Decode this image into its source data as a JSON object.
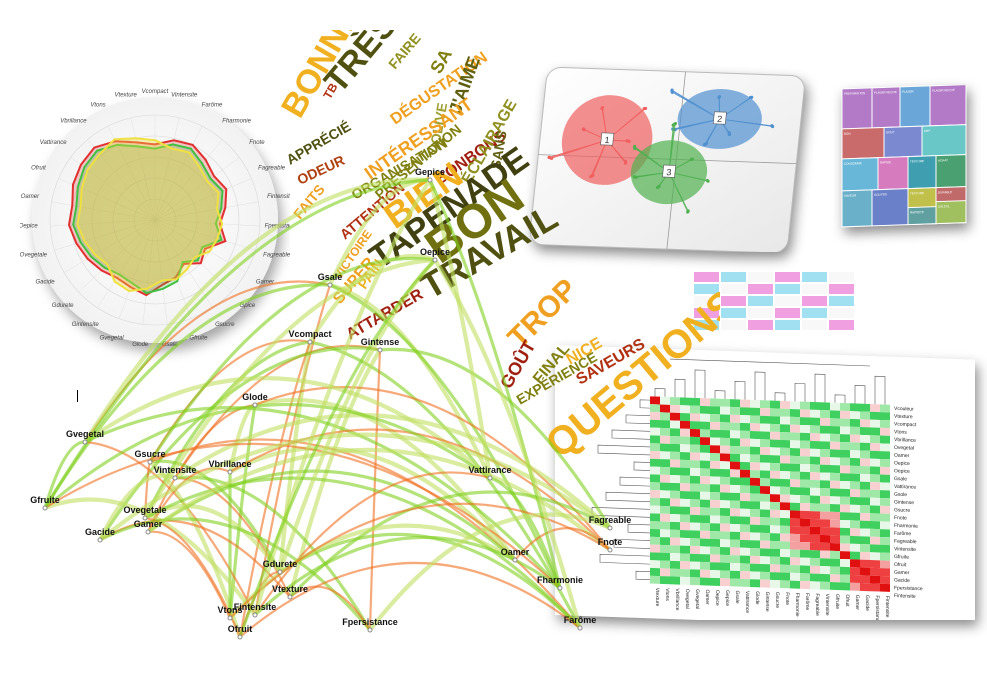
{
  "radar": {
    "labels": [
      "Vcompact",
      "Vintensite",
      "Farôme",
      "Fharmonie",
      "Fnote",
      "Fagreable",
      "Fintensite",
      "Fpersistance",
      "Fagreable",
      "Gamer",
      "Gpice",
      "Gsucre",
      "Gfruite",
      "Gsale",
      "Glode",
      "Gvegetal",
      "Gintensite",
      "Gdurete",
      "Gacide",
      "Ovegetale",
      "Oepice",
      "Oamer",
      "Ofruit",
      "Vattirance",
      "Vbrillance",
      "Vtons",
      "Vtexture"
    ],
    "series": [
      {
        "color": "#e03030",
        "values": [
          0.72,
          0.78,
          0.8,
          0.75,
          0.7,
          0.74,
          0.68,
          0.62,
          0.7,
          0.55,
          0.6,
          0.5,
          0.58,
          0.62,
          0.72,
          0.68,
          0.66,
          0.7,
          0.74,
          0.78,
          0.82,
          0.8,
          0.85,
          0.88,
          0.9,
          0.84,
          0.76
        ]
      },
      {
        "color": "#40c040",
        "values": [
          0.68,
          0.74,
          0.76,
          0.7,
          0.66,
          0.7,
          0.64,
          0.58,
          0.66,
          0.52,
          0.56,
          0.48,
          0.62,
          0.66,
          0.7,
          0.64,
          0.62,
          0.66,
          0.7,
          0.74,
          0.78,
          0.76,
          0.8,
          0.84,
          0.86,
          0.8,
          0.72
        ]
      },
      {
        "color": "#f0e040",
        "values": [
          0.76,
          0.7,
          0.72,
          0.66,
          0.62,
          0.66,
          0.6,
          0.64,
          0.62,
          0.6,
          0.52,
          0.56,
          0.6,
          0.58,
          0.66,
          0.72,
          0.7,
          0.62,
          0.66,
          0.7,
          0.74,
          0.72,
          0.76,
          0.8,
          0.82,
          0.86,
          0.8
        ]
      }
    ]
  },
  "wordcloud": {
    "words": [
      {
        "text": "BONNE",
        "color": "#f0b020"
      },
      {
        "text": "TRÈS",
        "color": "#505010"
      },
      {
        "text": "FAIRE",
        "color": "#909020"
      },
      {
        "text": "SA",
        "color": "#808010"
      },
      {
        "text": "TB",
        "color": "#b03010"
      },
      {
        "text": "DÉGUSTATION",
        "color": "#f0a020"
      },
      {
        "text": "OLIVE",
        "color": "#a0a030"
      },
      {
        "text": "J'AIME",
        "color": "#606010"
      },
      {
        "text": "APPRÉCIÉ",
        "color": "#505010"
      },
      {
        "text": "ODEUR",
        "color": "#b04010"
      },
      {
        "text": "ORGANISATION",
        "color": "#808010"
      },
      {
        "text": "INTÉRESSANT",
        "color": "#f0a020"
      },
      {
        "text": "BONBONS",
        "color": "#a02010"
      },
      {
        "text": "ÉCLAIRAGE",
        "color": "#909020"
      },
      {
        "text": "SANS",
        "color": "#606010"
      },
      {
        "text": "ATTENTION",
        "color": "#b03010"
      },
      {
        "text": "BIEN",
        "color": "#f0b020"
      },
      {
        "text": "TAPENADE",
        "color": "#404010"
      },
      {
        "text": "BON",
        "color": "#707010"
      },
      {
        "text": "TRAVAIL",
        "color": "#505010"
      },
      {
        "text": "VICTOIRE",
        "color": "#f0a020"
      },
      {
        "text": "PAIN",
        "color": "#f0b020"
      },
      {
        "text": "SUPER",
        "color": "#f0a020"
      },
      {
        "text": "ATTARDER",
        "color": "#a02010"
      },
      {
        "text": "TROP",
        "color": "#f0a020"
      },
      {
        "text": "FINAL",
        "color": "#808010"
      },
      {
        "text": "GOÛT",
        "color": "#a02010"
      },
      {
        "text": "NICE",
        "color": "#f0b020"
      },
      {
        "text": "SAVEURS",
        "color": "#b03010"
      },
      {
        "text": "EXPÉRIENCE",
        "color": "#808010"
      },
      {
        "text": "QUESTIONS",
        "color": "#f0b020"
      },
      {
        "text": "FAITS",
        "color": "#f0a020"
      },
      {
        "text": "PRÉSENTATION",
        "color": "#808010"
      }
    ]
  },
  "scatter": {
    "clusters": [
      {
        "id": "1",
        "color": "#f06060"
      },
      {
        "id": "2",
        "color": "#5090d0"
      },
      {
        "id": "3",
        "color": "#50b050"
      }
    ]
  },
  "network": {
    "nodes": [
      "Gsale",
      "Vcompact",
      "Gintense",
      "Glode",
      "Gvegetal",
      "Gsucre",
      "Vintensite",
      "Vbrillance",
      "Gfruite",
      "Ovegetale",
      "Gacide",
      "Gamer",
      "Vattirance",
      "Gdurete",
      "Vtexture",
      "Vtons",
      "Fintensite",
      "Ofruit",
      "Fpersistance",
      "Oamer",
      "Fharmonie",
      "Farôme",
      "Fagreable",
      "Fnote",
      "Gepice",
      "Oepice"
    ]
  },
  "heatmap": {
    "rows": [
      "Vcouleur",
      "Vtexture",
      "Vcompact",
      "Vtons",
      "Vbrillance",
      "Ovegetal",
      "Oamer",
      "Oepice",
      "Oepice",
      "Gsale",
      "Vattirance",
      "Gsole",
      "Gintense",
      "Gsucre",
      "Fnote",
      "Fharmonie",
      "Farôme",
      "Fagreable",
      "Vintensite",
      "Gfruite",
      "Ofruit",
      "Gamer",
      "Gacide",
      "Fpersistance",
      "Fintensite"
    ],
    "cols": [
      "Vtexture",
      "Vtons",
      "Vbrillance",
      "Ovegetal",
      "Gvegetal",
      "Oamer",
      "Oepice",
      "Gepice",
      "Gsale",
      "Vattirance",
      "Glode",
      "Gintense",
      "Gsucre",
      "Fnote",
      "Fharmonie",
      "Farôme",
      "Fagreable",
      "Vintensite",
      "Gfruite",
      "Ofruit",
      "Gamer",
      "Gacide",
      "Fpersistance",
      "Fintensite"
    ]
  },
  "treemap": {
    "cells": [
      "PREPARATION",
      "PLAISIR RECHE",
      "PLAISIR",
      "PLAISIR RECHE",
      "BON",
      "GOUT",
      "CRP",
      "CONSOMME",
      "RAPIDE",
      "TEXTURE",
      "ACHAT",
      "SAVEUR",
      "GOUTER",
      "TEXTURE",
      "DURABLE",
      "CALCUL",
      "RAPIDITE"
    ]
  }
}
